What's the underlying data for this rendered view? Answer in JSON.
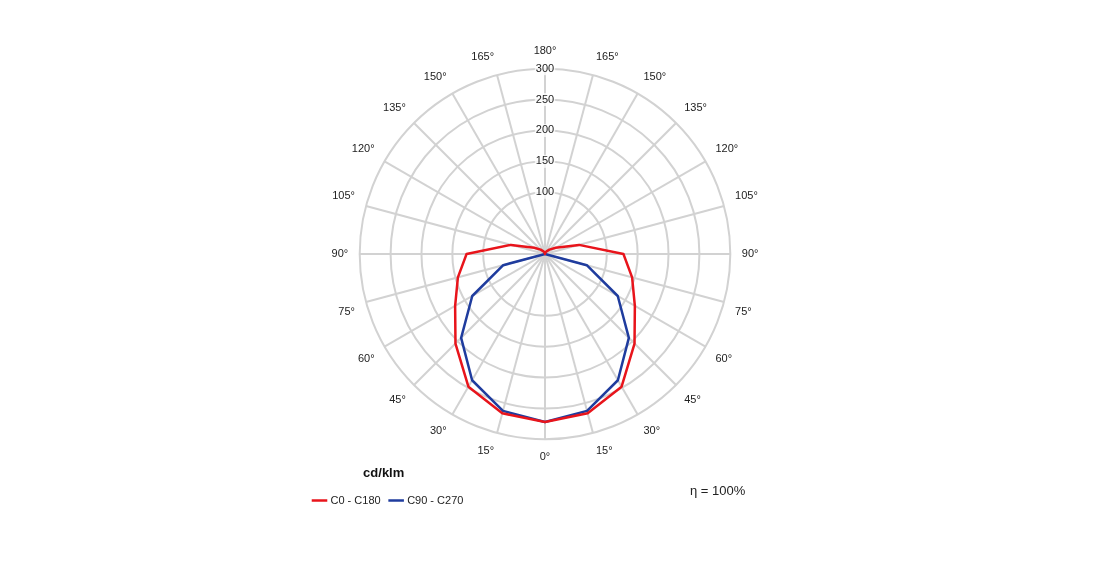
{
  "chart_data": {
    "type": "radar",
    "categories": [
      "180°",
      "165°",
      "150°",
      "135°",
      "120°",
      "105°",
      "90°",
      "75°",
      "60°",
      "45°",
      "30°",
      "15°",
      "0°",
      "15°",
      "30°",
      "45°",
      "60°",
      "75°",
      "90°",
      "105°",
      "120°",
      "135°",
      "150°",
      "165°"
    ],
    "series": [
      {
        "name": "C0 - C180",
        "color": "#e8141b",
        "values": [
          0,
          2,
          5,
          10,
          20,
          57,
          127,
          146,
          168,
          205,
          248,
          267,
          272,
          267,
          248,
          205,
          168,
          146,
          127,
          57,
          20,
          10,
          5,
          2
        ]
      },
      {
        "name": "C90 - C270",
        "color": "#1f3c9e",
        "values": [
          0,
          0,
          0,
          0,
          0,
          0,
          0,
          70,
          136,
          192,
          236,
          263,
          272,
          263,
          236,
          192,
          136,
          70,
          0,
          0,
          0,
          0,
          0,
          0
        ]
      }
    ],
    "ylim": [
      0,
      300
    ],
    "yticks": [
      100,
      150,
      200,
      250,
      300
    ],
    "ylabel": "cd/klm",
    "annotations": [
      "η = 100%"
    ],
    "grid": true,
    "legend": "bottom left",
    "marker": "none",
    "line_style": "solid"
  }
}
